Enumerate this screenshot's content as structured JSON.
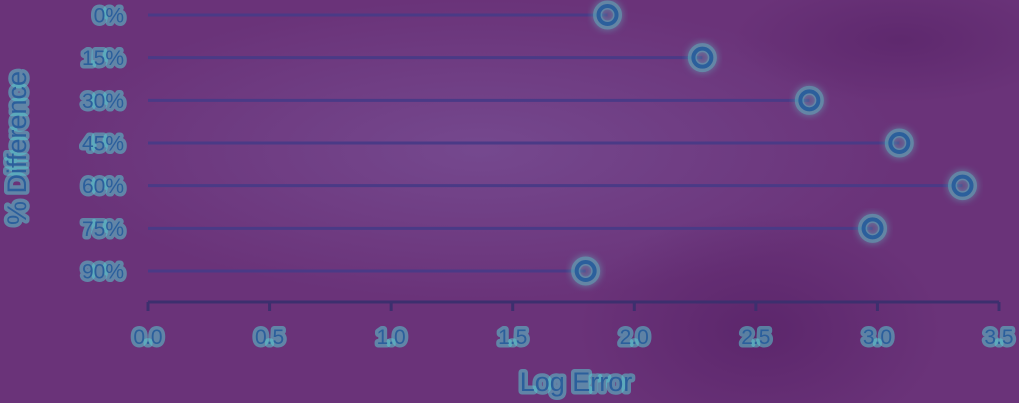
{
  "chart_data": {
    "type": "lollipop",
    "orientation": "horizontal",
    "xlabel": "Log Error",
    "ylabel": "% Difference",
    "categories": [
      "0%",
      "15%",
      "30%",
      "45%",
      "60%",
      "75%",
      "90%"
    ],
    "values": [
      1.89,
      2.28,
      2.72,
      3.09,
      3.35,
      2.98,
      1.8
    ],
    "xlim": [
      0.0,
      3.5
    ],
    "xticks": [
      "0.0",
      "0.5",
      "1.0",
      "1.5",
      "2.0",
      "2.5",
      "3.0",
      "3.5"
    ],
    "grid": false,
    "legend": "none"
  },
  "colors": {
    "background": "#6a3379",
    "line": "#4a3a86",
    "marker_stroke": "#2b5f9c",
    "marker_glow": "#5ec8c8",
    "text": "#2b5f9c"
  }
}
